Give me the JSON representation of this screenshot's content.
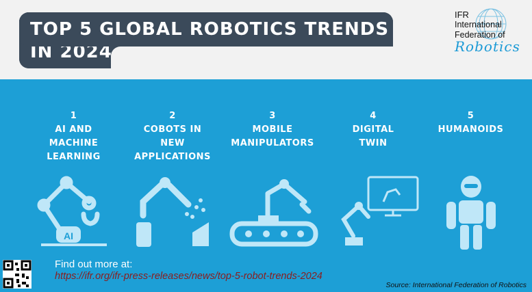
{
  "header": {
    "title_line1": "TOP 5 GLOBAL ROBOTICS TRENDS",
    "title_line2": "IN 2024"
  },
  "logo": {
    "abbr": "IFR",
    "name_line1": "International",
    "name_line2": "Federation of",
    "script": "Robotics"
  },
  "colors": {
    "band": "#1d9fd6",
    "title_box": "#3b4a5a",
    "icon_fill": "#bfe7f8",
    "link": "#8b1d1d"
  },
  "trends": [
    {
      "num": "1",
      "label": "AI AND\nMACHINE\nLEARNING",
      "icon": "ai-robot-arm-icon"
    },
    {
      "num": "2",
      "label": "COBOTS IN\nNEW\nAPPLICATIONS",
      "icon": "cobot-arm-icon"
    },
    {
      "num": "3",
      "label": "MOBILE\nMANIPULATORS",
      "icon": "mobile-manipulator-icon"
    },
    {
      "num": "4",
      "label": "DIGITAL\nTWIN",
      "icon": "digital-twin-icon"
    },
    {
      "num": "5",
      "label": "HUMANOIDS",
      "icon": "humanoid-icon"
    }
  ],
  "footer": {
    "find_more": "Find out more at:",
    "link": "https://ifr.org/ifr-press-releases/news/top-5-robot-trends-2024",
    "source": "Source: International Federation of Robotics"
  },
  "icon_labels": {
    "ai_badge": "AI"
  }
}
